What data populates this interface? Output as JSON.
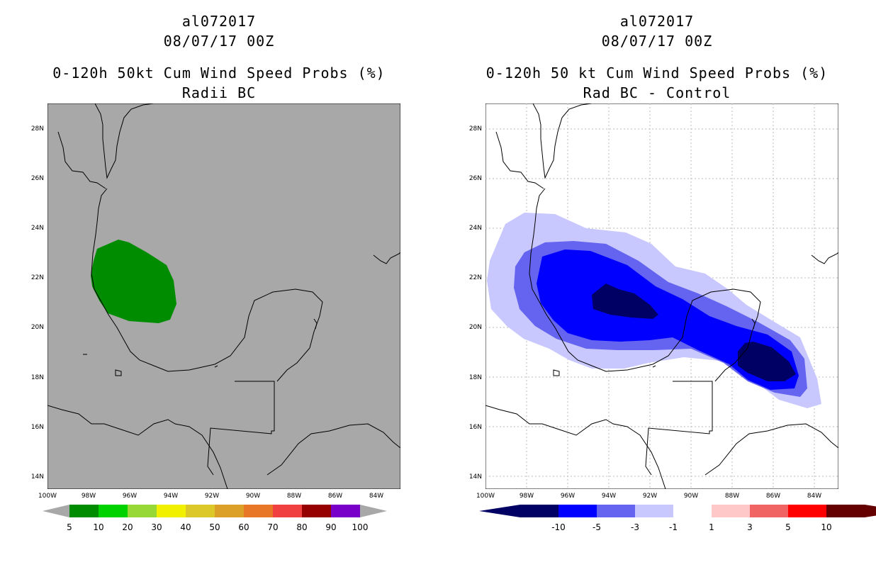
{
  "panels": [
    {
      "storm_id": "al072017",
      "datetime": "08/07/17 00Z",
      "product": "0-120h 50kt Cum Wind Speed Probs (%)",
      "variant": "Radii BC",
      "background": "#a8a8a8",
      "colorbar": {
        "colors": [
          "#008c00",
          "#00d200",
          "#98d836",
          "#f0f000",
          "#dcc828",
          "#dca028",
          "#e87828",
          "#f04040",
          "#960000",
          "#7800c8"
        ],
        "labels": [
          "5",
          "10",
          "20",
          "30",
          "40",
          "50",
          "60",
          "70",
          "80",
          "90",
          "100"
        ]
      }
    },
    {
      "storm_id": "al072017",
      "datetime": "08/07/17 00Z",
      "product": "0-120h 50 kt Cum Wind Speed Probs (%)",
      "variant": "Rad BC - Control",
      "background": "#ffffff",
      "colorbar": {
        "colors": [
          "#000064",
          "#0000ff",
          "#6464f0",
          "#c8c8ff",
          "#ffffff",
          "#ffc8c8",
          "#f06464",
          "#ff0000",
          "#640000"
        ],
        "labels": [
          "-10",
          "-5",
          "-3",
          "-1",
          "1",
          "3",
          "5",
          "10"
        ]
      }
    }
  ],
  "map": {
    "lat_labels": [
      "28N",
      "26N",
      "24N",
      "22N",
      "20N",
      "18N",
      "16N",
      "14N"
    ],
    "lon_labels": [
      "100W",
      "98W",
      "96W",
      "94W",
      "92W",
      "90W",
      "88W",
      "86W",
      "84W"
    ]
  }
}
